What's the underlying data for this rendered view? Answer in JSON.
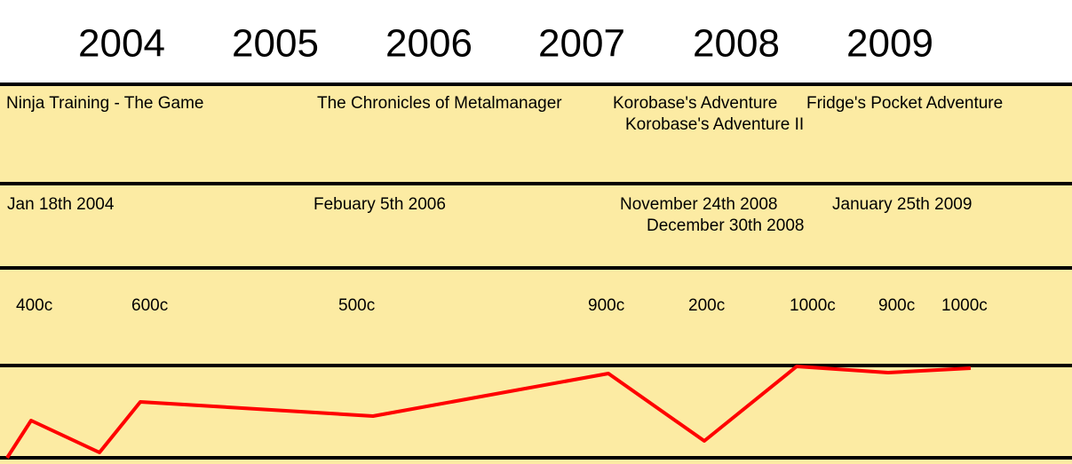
{
  "years": [
    "2004",
    "2005",
    "2006",
    "2007",
    "2008",
    "2009"
  ],
  "games": [
    "Ninja Training - The Game",
    "The Chronicles of Metalmanager",
    "Korobase's Adventure",
    "Fridge's Pocket Adventure",
    "Korobase's Adventure II"
  ],
  "dates": [
    "Jan 18th 2004",
    "Febuary 5th 2006",
    "November 24th 2008",
    "January 25th 2009",
    "December 30th 2008"
  ],
  "prices": [
    "400c",
    "600c",
    "500c",
    "900c",
    "200c",
    "1000c",
    "900c",
    "1000c"
  ]
}
